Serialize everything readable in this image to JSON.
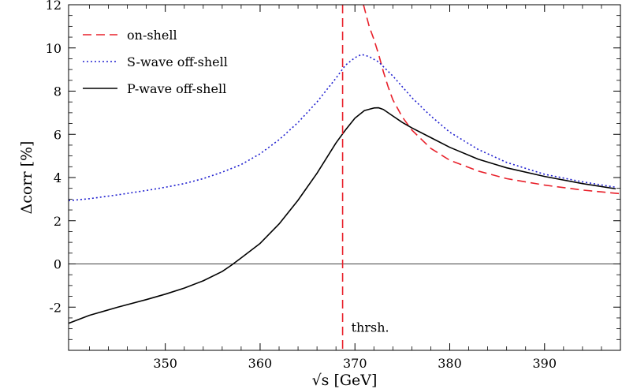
{
  "chart_data": {
    "type": "line",
    "title": "",
    "xlabel": "√s [GeV]",
    "ylabel": "Δcorr [%]",
    "xlim": [
      339.8,
      398
    ],
    "ylim": [
      -4,
      12
    ],
    "x_ticks": [
      350,
      360,
      370,
      380,
      390
    ],
    "y_ticks": [
      -2,
      0,
      2,
      4,
      6,
      8,
      10,
      12
    ],
    "grid": false,
    "legend_position": "top-left",
    "zero_line": 0,
    "threshold": {
      "x": 368.7,
      "label": "thrsh.",
      "color": "#e8202a"
    },
    "series": [
      {
        "name": "on-shell",
        "color": "#e8202a",
        "dash": "dashed",
        "x": [
          370.9,
          371.5,
          372.0,
          372.5,
          373.0,
          373.5,
          374.0,
          375.0,
          376.0,
          378.0,
          380.0,
          383.0,
          386.0,
          390.0,
          394.0,
          398.0
        ],
        "y": [
          12.0,
          11.0,
          10.4,
          9.7,
          8.9,
          8.2,
          7.6,
          6.8,
          6.2,
          5.35,
          4.8,
          4.3,
          3.95,
          3.65,
          3.42,
          3.25
        ]
      },
      {
        "name": "S-wave off-shell",
        "color": "#2020d0",
        "dash": "dotted",
        "x": [
          339.8,
          342,
          345,
          348,
          350,
          352,
          354,
          356,
          358,
          360,
          362,
          364,
          366,
          368,
          369,
          370,
          370.7,
          371.5,
          372.5,
          374,
          376,
          378,
          380,
          383,
          386,
          390,
          394,
          397.5
        ],
        "y": [
          2.93,
          3.02,
          3.2,
          3.4,
          3.55,
          3.72,
          3.95,
          4.25,
          4.6,
          5.1,
          5.75,
          6.55,
          7.5,
          8.6,
          9.2,
          9.55,
          9.7,
          9.6,
          9.35,
          8.7,
          7.7,
          6.85,
          6.1,
          5.3,
          4.7,
          4.15,
          3.8,
          3.55
        ]
      },
      {
        "name": "P-wave off-shell",
        "color": "#000000",
        "dash": "solid",
        "x": [
          339.8,
          342,
          345,
          348,
          350,
          352,
          354,
          356,
          357,
          358,
          360,
          362,
          364,
          366,
          368,
          369,
          370,
          371,
          372,
          372.5,
          373,
          374,
          375,
          376,
          378,
          380,
          383,
          386,
          390,
          394,
          397.5
        ],
        "y": [
          -2.75,
          -2.38,
          -2.0,
          -1.65,
          -1.4,
          -1.12,
          -0.78,
          -0.35,
          -0.05,
          0.28,
          0.95,
          1.85,
          2.95,
          4.2,
          5.6,
          6.2,
          6.75,
          7.1,
          7.22,
          7.23,
          7.15,
          6.85,
          6.55,
          6.3,
          5.85,
          5.4,
          4.85,
          4.45,
          4.05,
          3.72,
          3.48
        ]
      }
    ]
  }
}
